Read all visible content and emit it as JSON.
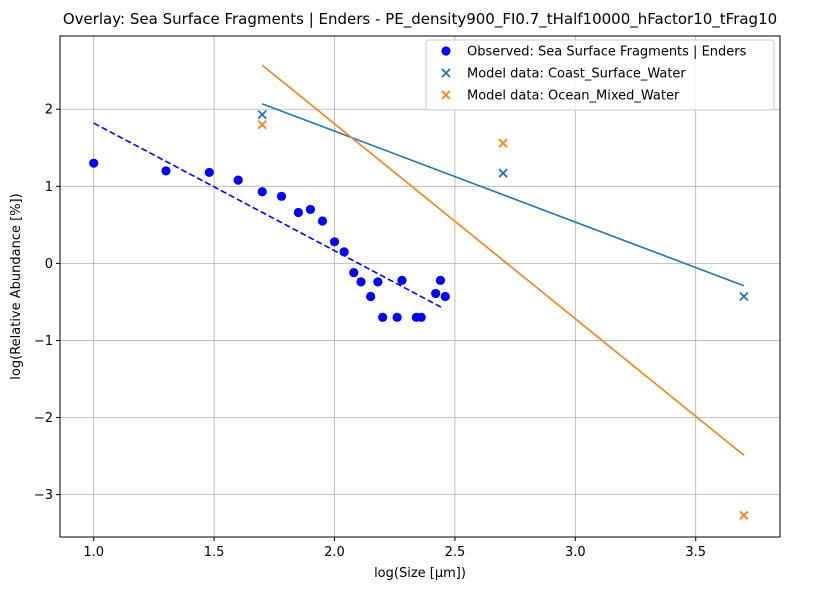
{
  "chart_data": {
    "type": "scatter",
    "title": "Overlay: Sea Surface Fragments | Enders - PE_density900_FI0.7_tHalf10000_hFactor10_tFrag10",
    "xlabel": "log(Size [μm])",
    "ylabel": "log(Relative Abundance [%])",
    "xlim": [
      0.86,
      3.85
    ],
    "ylim": [
      -3.55,
      2.95
    ],
    "xticks": [
      1.0,
      1.5,
      2.0,
      2.5,
      3.0,
      3.5
    ],
    "xtick_labels": [
      "1.0",
      "1.5",
      "2.0",
      "2.5",
      "3.0",
      "3.5"
    ],
    "yticks": [
      -3,
      -2,
      -1,
      0,
      1,
      2
    ],
    "ytick_labels": [
      "−3",
      "−2",
      "−1",
      "0",
      "1",
      "2"
    ],
    "grid": true,
    "legend_position": "top-right",
    "series": [
      {
        "name": "Observed: Sea Surface Fragments | Enders",
        "kind": "scatter-dot",
        "color": "#0000ff",
        "points": [
          [
            1.0,
            1.3
          ],
          [
            1.3,
            1.2
          ],
          [
            1.48,
            1.18
          ],
          [
            1.6,
            1.08
          ],
          [
            1.7,
            0.93
          ],
          [
            1.78,
            0.87
          ],
          [
            1.85,
            0.66
          ],
          [
            1.9,
            0.7
          ],
          [
            1.95,
            0.55
          ],
          [
            2.0,
            0.28
          ],
          [
            2.04,
            0.15
          ],
          [
            2.08,
            -0.12
          ],
          [
            2.11,
            -0.24
          ],
          [
            2.15,
            -0.43
          ],
          [
            2.18,
            -0.24
          ],
          [
            2.2,
            -0.7
          ],
          [
            2.26,
            -0.7
          ],
          [
            2.28,
            -0.22
          ],
          [
            2.34,
            -0.7
          ],
          [
            2.36,
            -0.7
          ],
          [
            2.42,
            -0.39
          ],
          [
            2.44,
            -0.22
          ],
          [
            2.46,
            -0.43
          ]
        ]
      },
      {
        "name": "",
        "kind": "fit-dashed",
        "color": "#0000ff",
        "points": [
          [
            1.0,
            1.82
          ],
          [
            2.45,
            -0.58
          ]
        ]
      },
      {
        "name": "Model data: Coast_Surface_Water",
        "kind": "scatter-x",
        "color": "#1f77b4",
        "points": [
          [
            1.7,
            1.93
          ],
          [
            2.7,
            1.17
          ],
          [
            3.7,
            -0.43
          ]
        ]
      },
      {
        "name": "",
        "kind": "fit-line",
        "color": "#1f77b4",
        "points": [
          [
            1.7,
            2.07
          ],
          [
            3.7,
            -0.29
          ]
        ]
      },
      {
        "name": "Model data: Ocean_Mixed_Water",
        "kind": "scatter-x",
        "color": "#ff7f0e",
        "points": [
          [
            1.7,
            1.8
          ],
          [
            2.7,
            1.56
          ],
          [
            3.7,
            -3.27
          ]
        ]
      },
      {
        "name": "",
        "kind": "fit-line",
        "color": "#ff7f0e",
        "points": [
          [
            1.7,
            2.57
          ],
          [
            3.7,
            -2.49
          ]
        ]
      }
    ],
    "legend": [
      {
        "label": "Observed: Sea Surface Fragments | Enders",
        "marker": "dot",
        "color": "#0000ff"
      },
      {
        "label": "Model data: Coast_Surface_Water",
        "marker": "x",
        "color": "#1f77b4"
      },
      {
        "label": "Model data: Ocean_Mixed_Water",
        "marker": "x",
        "color": "#ff7f0e"
      }
    ]
  }
}
